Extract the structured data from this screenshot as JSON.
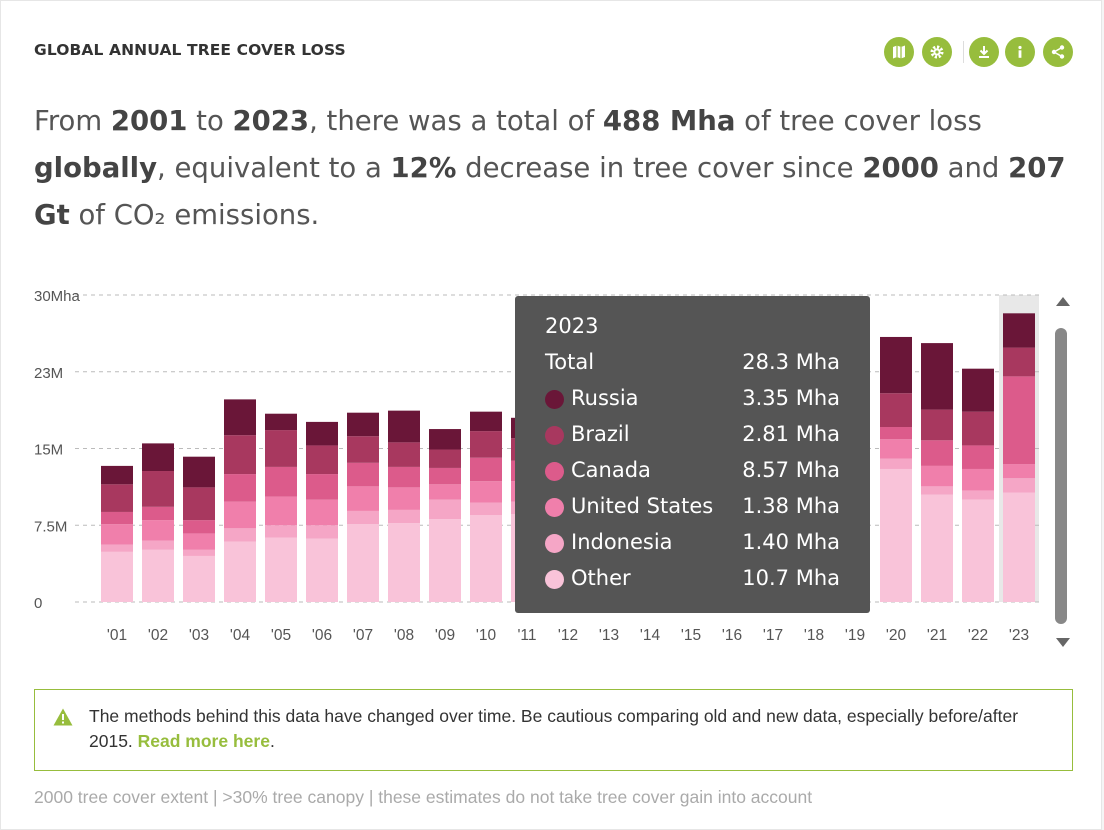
{
  "widget": {
    "title": "GLOBAL ANNUAL TREE COVER LOSS",
    "actions": [
      {
        "name": "map-icon"
      },
      {
        "name": "settings-icon"
      },
      {
        "name": "download-icon"
      },
      {
        "name": "info-icon"
      },
      {
        "name": "share-icon"
      }
    ]
  },
  "sentence": {
    "p1": "From ",
    "start_year": "2001",
    "p2": " to ",
    "end_year": "2023",
    "p3": ", there was a total of ",
    "total": "488 Mha",
    "p4": " of tree cover loss ",
    "location": "globally",
    "p5": ", equivalent to a ",
    "percent": "12%",
    "p6": " decrease in tree cover since ",
    "base_year": "2000",
    "p7": " and ",
    "emissions": "207 Gt",
    "p8": " of CO₂ emissions."
  },
  "chart_data": {
    "type": "bar",
    "stacked": true,
    "categories": [
      "'01",
      "'02",
      "'03",
      "'04",
      "'05",
      "'06",
      "'07",
      "'08",
      "'09",
      "'10",
      "'11",
      "'12",
      "'13",
      "'14",
      "'15",
      "'16",
      "'17",
      "'18",
      "'19",
      "'20",
      "'21",
      "'22",
      "'23"
    ],
    "y_ticks": [
      "0",
      "7.5M",
      "15M",
      "23M",
      "30Mha"
    ],
    "ylim": [
      0,
      30
    ],
    "series": [
      {
        "name": "Other",
        "color": "#f9c3d9",
        "values": [
          4.9,
          5.1,
          4.5,
          5.9,
          6.3,
          6.2,
          7.6,
          7.7,
          8.1,
          8.5,
          8.6,
          0,
          0,
          0,
          0,
          0,
          0,
          0,
          0,
          13.0,
          10.5,
          10.0,
          10.7
        ]
      },
      {
        "name": "Indonesia",
        "color": "#f5a6c6",
        "values": [
          0.7,
          0.9,
          0.6,
          1.3,
          1.2,
          1.3,
          1.3,
          1.3,
          1.9,
          1.2,
          1.2,
          0,
          0,
          0,
          0,
          0,
          0,
          0,
          0,
          1.0,
          0.8,
          0.9,
          1.4
        ]
      },
      {
        "name": "United States",
        "color": "#f07fab",
        "values": [
          2.0,
          2.0,
          1.6,
          2.6,
          2.8,
          2.5,
          2.4,
          2.2,
          1.5,
          2.1,
          2.0,
          0,
          0,
          0,
          0,
          0,
          0,
          0,
          0,
          1.9,
          2.0,
          2.1,
          1.38
        ]
      },
      {
        "name": "Canada",
        "color": "#dc5b8b",
        "values": [
          1.2,
          1.3,
          1.3,
          2.7,
          2.9,
          2.5,
          2.3,
          2.0,
          1.6,
          2.3,
          2.0,
          0,
          0,
          0,
          0,
          0,
          0,
          0,
          0,
          1.2,
          2.5,
          2.3,
          8.57
        ]
      },
      {
        "name": "Brazil",
        "color": "#a8385f",
        "values": [
          2.7,
          3.5,
          3.2,
          3.8,
          3.6,
          2.8,
          2.6,
          2.4,
          1.8,
          2.6,
          2.2,
          0,
          0,
          0,
          0,
          0,
          0,
          0,
          0,
          3.3,
          3.0,
          3.3,
          2.81
        ]
      },
      {
        "name": "Russia",
        "color": "#6a1638",
        "values": [
          1.8,
          2.7,
          3.0,
          3.5,
          1.6,
          2.3,
          2.3,
          3.1,
          2.0,
          1.9,
          2.0,
          0,
          0,
          0,
          0,
          0,
          0,
          0,
          0,
          5.5,
          6.5,
          4.2,
          3.35
        ]
      }
    ],
    "highlighted_category": "'23"
  },
  "tooltip": {
    "year": "2023",
    "total_label": "Total",
    "total_value": "28.3 Mha",
    "rows": [
      {
        "label": "Russia",
        "value": "3.35 Mha",
        "color": "#6a1638"
      },
      {
        "label": "Brazil",
        "value": "2.81 Mha",
        "color": "#a8385f"
      },
      {
        "label": "Canada",
        "value": "8.57 Mha",
        "color": "#dc5b8b"
      },
      {
        "label": "United States",
        "value": "1.38 Mha",
        "color": "#f07fab"
      },
      {
        "label": "Indonesia",
        "value": "1.40 Mha",
        "color": "#f5a6c6"
      },
      {
        "label": "Other",
        "value": "10.7 Mha",
        "color": "#f9c3d9"
      }
    ]
  },
  "notice": {
    "text": "The methods behind this data have changed over time. Be cautious comparing old and new data, especially before/after 2015. ",
    "link": "Read more here",
    "end": "."
  },
  "footnote": "2000 tree cover extent | >30% tree canopy | these estimates do not take tree cover gain into account"
}
